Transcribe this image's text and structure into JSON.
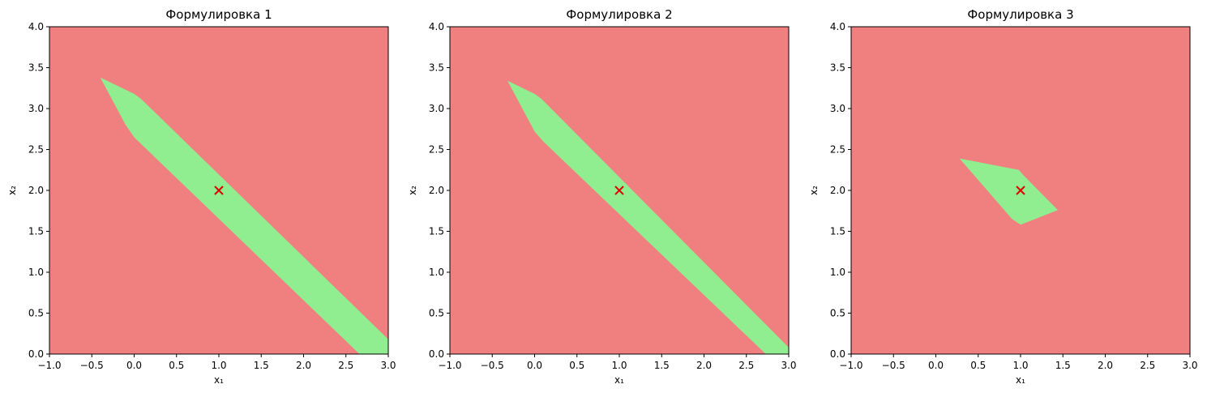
{
  "chart_data": [
    {
      "type": "area",
      "title": "Формулировка 1",
      "xlabel": "x₁",
      "ylabel": "x₂",
      "xlim": [
        -1.0,
        3.0
      ],
      "ylim": [
        0.0,
        4.0
      ],
      "x_ticks": [
        "−1.0",
        "−0.5",
        "0.0",
        "0.5",
        "1.0",
        "1.5",
        "2.0",
        "2.5",
        "3.0"
      ],
      "y_ticks": [
        "0.0",
        "0.5",
        "1.0",
        "1.5",
        "2.0",
        "2.5",
        "3.0",
        "3.5",
        "4.0"
      ],
      "grid": false,
      "background_color": "#f08080",
      "region_color": "#90ee90",
      "marker_color": "#e00000",
      "region_polygon": [
        [
          -0.4,
          3.38
        ],
        [
          0.0,
          3.18
        ],
        [
          0.08,
          3.12
        ],
        [
          3.0,
          0.18
        ],
        [
          3.0,
          0.0
        ],
        [
          2.66,
          0.0
        ],
        [
          0.1,
          2.55
        ],
        [
          0.0,
          2.65
        ],
        [
          -0.1,
          2.8
        ]
      ],
      "marker": {
        "x": 1.0,
        "y": 2.0,
        "symbol": "x"
      }
    },
    {
      "type": "area",
      "title": "Формулировка 2",
      "xlabel": "x₁",
      "ylabel": "x₂",
      "xlim": [
        -1.0,
        3.0
      ],
      "ylim": [
        0.0,
        4.0
      ],
      "x_ticks": [
        "−1.0",
        "−0.5",
        "0.0",
        "0.5",
        "1.0",
        "1.5",
        "2.0",
        "2.5",
        "3.0"
      ],
      "y_ticks": [
        "0.0",
        "0.5",
        "1.0",
        "1.5",
        "2.0",
        "2.5",
        "3.0",
        "3.5",
        "4.0"
      ],
      "grid": false,
      "background_color": "#f08080",
      "region_color": "#90ee90",
      "marker_color": "#e00000",
      "region_polygon": [
        [
          -0.32,
          3.34
        ],
        [
          0.0,
          3.18
        ],
        [
          0.08,
          3.12
        ],
        [
          3.0,
          0.08
        ],
        [
          3.0,
          0.0
        ],
        [
          2.73,
          0.0
        ],
        [
          0.1,
          2.6
        ],
        [
          0.0,
          2.72
        ]
      ],
      "marker": {
        "x": 1.0,
        "y": 2.0,
        "symbol": "x"
      }
    },
    {
      "type": "area",
      "title": "Формулировка 3",
      "xlabel": "x₁",
      "ylabel": "x₂",
      "xlim": [
        -1.0,
        3.0
      ],
      "ylim": [
        0.0,
        4.0
      ],
      "x_ticks": [
        "−1.0",
        "−0.5",
        "0.0",
        "0.5",
        "1.0",
        "1.5",
        "2.0",
        "2.5",
        "3.0"
      ],
      "y_ticks": [
        "0.0",
        "0.5",
        "1.0",
        "1.5",
        "2.0",
        "2.5",
        "3.0",
        "3.5",
        "4.0"
      ],
      "grid": false,
      "background_color": "#f08080",
      "region_color": "#90ee90",
      "marker_color": "#e00000",
      "region_polygon": [
        [
          0.28,
          2.39
        ],
        [
          0.98,
          2.25
        ],
        [
          1.02,
          2.2
        ],
        [
          1.44,
          1.76
        ],
        [
          1.0,
          1.58
        ],
        [
          0.9,
          1.65
        ]
      ],
      "marker": {
        "x": 1.0,
        "y": 2.0,
        "symbol": "x"
      }
    }
  ]
}
